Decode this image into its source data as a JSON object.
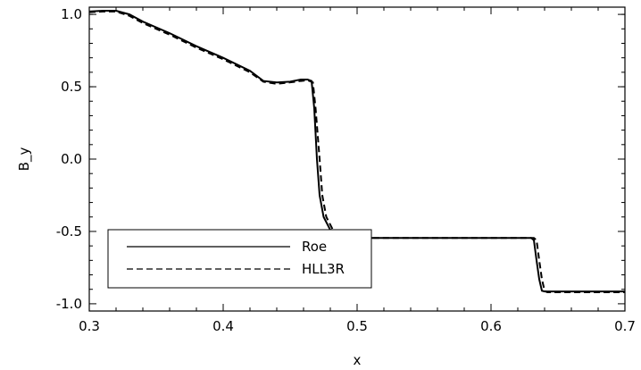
{
  "chart_data": {
    "type": "line",
    "title": "",
    "xlabel": "x",
    "ylabel": "B_y",
    "xlim": [
      0.3,
      0.7
    ],
    "ylim": [
      -1.05,
      1.05
    ],
    "xticks": [
      0.3,
      0.4,
      0.5,
      0.6,
      0.7
    ],
    "xtick_labels": [
      "0.3",
      "0.4",
      "0.5",
      "0.6",
      "0.7"
    ],
    "yticks": [
      -1.0,
      -0.5,
      0.0,
      0.5,
      1.0
    ],
    "ytick_labels": [
      "-1.0",
      "-0.5",
      "0.0",
      "0.5",
      "1.0"
    ],
    "grid": false,
    "legend_position": "bottom-left",
    "series": [
      {
        "name": "Roe",
        "style": "solid",
        "color": "#000000",
        "points": [
          [
            0.3,
            1.02
          ],
          [
            0.31,
            1.025
          ],
          [
            0.32,
            1.025
          ],
          [
            0.33,
            1.0
          ],
          [
            0.34,
            0.95
          ],
          [
            0.36,
            0.87
          ],
          [
            0.38,
            0.78
          ],
          [
            0.4,
            0.7
          ],
          [
            0.42,
            0.61
          ],
          [
            0.43,
            0.54
          ],
          [
            0.44,
            0.53
          ],
          [
            0.45,
            0.535
          ],
          [
            0.458,
            0.55
          ],
          [
            0.463,
            0.55
          ],
          [
            0.466,
            0.54
          ],
          [
            0.468,
            0.35
          ],
          [
            0.47,
            0.0
          ],
          [
            0.472,
            -0.25
          ],
          [
            0.475,
            -0.4
          ],
          [
            0.48,
            -0.49
          ],
          [
            0.49,
            -0.535
          ],
          [
            0.5,
            -0.545
          ],
          [
            0.52,
            -0.545
          ],
          [
            0.55,
            -0.545
          ],
          [
            0.6,
            -0.545
          ],
          [
            0.63,
            -0.545
          ],
          [
            0.632,
            -0.56
          ],
          [
            0.634,
            -0.7
          ],
          [
            0.636,
            -0.83
          ],
          [
            0.638,
            -0.91
          ],
          [
            0.64,
            -0.915
          ],
          [
            0.66,
            -0.915
          ],
          [
            0.68,
            -0.915
          ],
          [
            0.7,
            -0.915
          ]
        ]
      },
      {
        "name": "HLL3R",
        "style": "dashed",
        "color": "#000000",
        "points": [
          [
            0.3,
            1.015
          ],
          [
            0.31,
            1.02
          ],
          [
            0.32,
            1.02
          ],
          [
            0.33,
            0.99
          ],
          [
            0.34,
            0.94
          ],
          [
            0.36,
            0.86
          ],
          [
            0.38,
            0.77
          ],
          [
            0.4,
            0.69
          ],
          [
            0.42,
            0.6
          ],
          [
            0.43,
            0.535
          ],
          [
            0.44,
            0.52
          ],
          [
            0.45,
            0.53
          ],
          [
            0.458,
            0.54
          ],
          [
            0.463,
            0.545
          ],
          [
            0.467,
            0.53
          ],
          [
            0.469,
            0.35
          ],
          [
            0.472,
            0.0
          ],
          [
            0.474,
            -0.25
          ],
          [
            0.477,
            -0.4
          ],
          [
            0.482,
            -0.49
          ],
          [
            0.492,
            -0.535
          ],
          [
            0.5,
            -0.545
          ],
          [
            0.52,
            -0.545
          ],
          [
            0.55,
            -0.545
          ],
          [
            0.6,
            -0.545
          ],
          [
            0.632,
            -0.545
          ],
          [
            0.634,
            -0.56
          ],
          [
            0.636,
            -0.7
          ],
          [
            0.638,
            -0.83
          ],
          [
            0.64,
            -0.91
          ],
          [
            0.642,
            -0.92
          ],
          [
            0.66,
            -0.92
          ],
          [
            0.68,
            -0.92
          ],
          [
            0.7,
            -0.92
          ]
        ]
      }
    ]
  }
}
